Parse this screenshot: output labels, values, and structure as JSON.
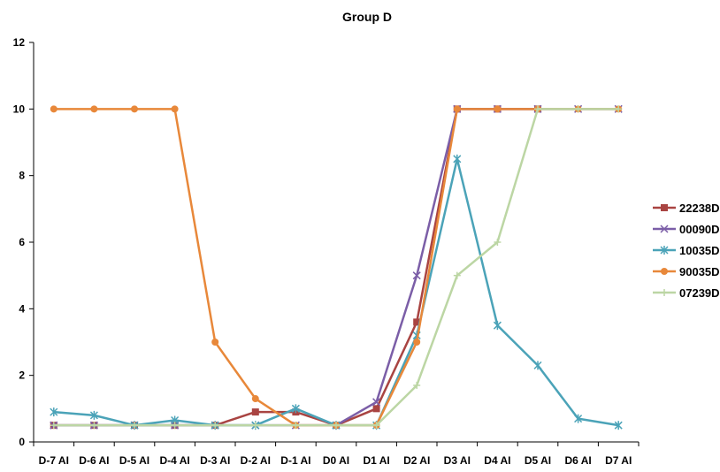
{
  "chart_data": {
    "type": "line",
    "title": "Group D",
    "xlabel": "",
    "ylabel": "",
    "categories": [
      "D-7 AI",
      "D-6 AI",
      "D-5 AI",
      "D-4 AI",
      "D-3 AI",
      "D-2 AI",
      "D-1 AI",
      "D0 AI",
      "D1 AI",
      "D2 AI",
      "D3 AI",
      "D4 AI",
      "D5 AI",
      "D6 AI",
      "D7 AI"
    ],
    "ylim": [
      0,
      12
    ],
    "yticks": [
      "0",
      "2",
      "4",
      "6",
      "8",
      "10",
      "12"
    ],
    "grid": false,
    "legend_position": "right",
    "series": [
      {
        "name": "22238D",
        "color": "#A94442",
        "marker": "square",
        "values": [
          0.5,
          0.5,
          0.5,
          0.5,
          0.5,
          0.9,
          0.9,
          0.5,
          1.0,
          3.6,
          10,
          10,
          10,
          null,
          null
        ]
      },
      {
        "name": "00090D",
        "color": "#7B5EA7",
        "marker": "x",
        "values": [
          0.5,
          0.5,
          0.5,
          0.5,
          0.5,
          0.5,
          0.5,
          0.5,
          1.2,
          5.0,
          10,
          10,
          10,
          10,
          10
        ]
      },
      {
        "name": "10035D",
        "color": "#4BA3B8",
        "marker": "star",
        "values": [
          0.9,
          0.8,
          0.5,
          0.65,
          0.5,
          0.5,
          1.0,
          0.5,
          0.5,
          3.2,
          8.5,
          3.5,
          2.3,
          0.7,
          0.5
        ]
      },
      {
        "name": "90035D",
        "color": "#E8883A",
        "marker": "circle",
        "values": [
          10,
          10,
          10,
          10,
          3.0,
          1.3,
          0.5,
          0.5,
          0.5,
          3.0,
          10,
          10,
          10,
          10,
          10
        ]
      },
      {
        "name": "07239D",
        "color": "#BCD6A4",
        "marker": "plus",
        "values": [
          0.5,
          0.5,
          0.5,
          0.5,
          0.5,
          0.5,
          0.5,
          0.5,
          0.5,
          1.7,
          5.0,
          6.0,
          10,
          10,
          10
        ]
      }
    ]
  }
}
